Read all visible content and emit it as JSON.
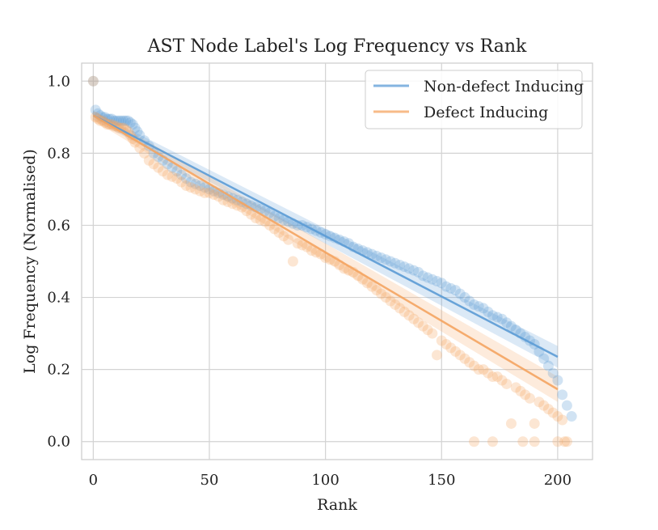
{
  "chart_data": {
    "type": "scatter",
    "title": "AST Node Label's Log Frequency vs Rank",
    "xlabel": "Rank",
    "ylabel": "Log Frequency (Normalised)",
    "xlim": [
      -5,
      215
    ],
    "ylim": [
      -0.05,
      1.05
    ],
    "xticks": [
      0,
      50,
      100,
      150,
      200
    ],
    "yticks": [
      0.0,
      0.2,
      0.4,
      0.6,
      0.8,
      1.0
    ],
    "grid": true,
    "legend_position": "top-right",
    "series": [
      {
        "name": "Non-defect Inducing",
        "color": "#5b9bd5",
        "regression": {
          "x_start": 0,
          "y_start": 0.905,
          "x_end": 200,
          "y_end": 0.235,
          "ci_band": 0.03
        },
        "x": [
          0,
          1,
          2,
          3,
          4,
          5,
          6,
          7,
          8,
          9,
          10,
          11,
          12,
          13,
          14,
          15,
          16,
          17,
          18,
          19,
          20,
          22,
          24,
          26,
          28,
          30,
          32,
          34,
          36,
          38,
          40,
          42,
          44,
          46,
          48,
          50,
          52,
          54,
          56,
          58,
          60,
          62,
          64,
          66,
          68,
          70,
          72,
          74,
          76,
          78,
          80,
          82,
          84,
          86,
          88,
          90,
          92,
          94,
          96,
          98,
          100,
          102,
          104,
          106,
          108,
          110,
          112,
          114,
          116,
          118,
          120,
          122,
          124,
          126,
          128,
          130,
          132,
          134,
          136,
          138,
          140,
          142,
          144,
          146,
          148,
          150,
          152,
          154,
          156,
          158,
          160,
          162,
          164,
          166,
          168,
          170,
          172,
          174,
          176,
          178,
          180,
          182,
          184,
          186,
          188,
          190,
          192,
          194,
          196,
          198,
          200,
          202,
          204,
          206
        ],
        "y": [
          1.0,
          0.92,
          0.91,
          0.905,
          0.9,
          0.9,
          0.895,
          0.895,
          0.895,
          0.89,
          0.89,
          0.89,
          0.89,
          0.89,
          0.89,
          0.89,
          0.885,
          0.88,
          0.87,
          0.86,
          0.85,
          0.835,
          0.82,
          0.8,
          0.79,
          0.78,
          0.77,
          0.76,
          0.75,
          0.74,
          0.73,
          0.72,
          0.715,
          0.71,
          0.705,
          0.7,
          0.695,
          0.69,
          0.685,
          0.68,
          0.675,
          0.67,
          0.665,
          0.66,
          0.655,
          0.65,
          0.645,
          0.64,
          0.635,
          0.625,
          0.62,
          0.615,
          0.61,
          0.605,
          0.6,
          0.6,
          0.595,
          0.59,
          0.585,
          0.58,
          0.575,
          0.57,
          0.565,
          0.56,
          0.555,
          0.55,
          0.54,
          0.535,
          0.53,
          0.525,
          0.52,
          0.515,
          0.51,
          0.505,
          0.5,
          0.495,
          0.49,
          0.485,
          0.48,
          0.475,
          0.47,
          0.46,
          0.455,
          0.45,
          0.445,
          0.44,
          0.43,
          0.425,
          0.42,
          0.41,
          0.4,
          0.39,
          0.38,
          0.375,
          0.37,
          0.36,
          0.35,
          0.345,
          0.34,
          0.33,
          0.32,
          0.31,
          0.3,
          0.29,
          0.28,
          0.27,
          0.25,
          0.23,
          0.21,
          0.19,
          0.17,
          0.13,
          0.1,
          0.07
        ]
      },
      {
        "name": "Defect Inducing",
        "color": "#f4a460",
        "regression": {
          "x_start": 0,
          "y_start": 0.905,
          "x_end": 200,
          "y_end": 0.145,
          "ci_band": 0.035
        },
        "x": [
          0,
          1,
          2,
          3,
          4,
          5,
          6,
          7,
          8,
          9,
          10,
          11,
          12,
          13,
          14,
          15,
          16,
          17,
          18,
          20,
          22,
          24,
          26,
          28,
          30,
          32,
          34,
          36,
          38,
          40,
          42,
          44,
          46,
          48,
          50,
          52,
          54,
          56,
          58,
          60,
          62,
          64,
          66,
          68,
          70,
          72,
          74,
          76,
          78,
          80,
          82,
          84,
          86,
          88,
          90,
          92,
          94,
          96,
          98,
          100,
          102,
          104,
          106,
          108,
          110,
          112,
          114,
          116,
          118,
          120,
          122,
          124,
          126,
          128,
          130,
          132,
          134,
          136,
          138,
          140,
          142,
          144,
          146,
          148,
          150,
          152,
          154,
          156,
          158,
          160,
          162,
          164,
          166,
          168,
          170,
          172,
          174,
          176,
          178,
          180,
          182,
          184,
          186,
          188,
          190,
          192,
          194,
          196,
          198,
          200,
          202,
          203,
          204,
          164,
          172,
          185,
          190,
          200
        ],
        "y": [
          1.0,
          0.9,
          0.895,
          0.89,
          0.89,
          0.885,
          0.88,
          0.88,
          0.88,
          0.875,
          0.875,
          0.87,
          0.87,
          0.87,
          0.865,
          0.86,
          0.85,
          0.84,
          0.83,
          0.815,
          0.8,
          0.78,
          0.77,
          0.76,
          0.75,
          0.74,
          0.735,
          0.73,
          0.72,
          0.71,
          0.705,
          0.7,
          0.695,
          0.69,
          0.69,
          0.685,
          0.68,
          0.67,
          0.665,
          0.66,
          0.655,
          0.65,
          0.64,
          0.63,
          0.62,
          0.615,
          0.61,
          0.6,
          0.59,
          0.58,
          0.57,
          0.56,
          0.5,
          0.55,
          0.545,
          0.54,
          0.53,
          0.525,
          0.52,
          0.51,
          0.505,
          0.5,
          0.49,
          0.48,
          0.475,
          0.47,
          0.46,
          0.45,
          0.44,
          0.43,
          0.42,
          0.41,
          0.4,
          0.39,
          0.38,
          0.37,
          0.36,
          0.35,
          0.34,
          0.33,
          0.32,
          0.31,
          0.3,
          0.24,
          0.28,
          0.27,
          0.26,
          0.25,
          0.24,
          0.23,
          0.22,
          0.21,
          0.2,
          0.2,
          0.19,
          0.18,
          0.18,
          0.17,
          0.16,
          0.05,
          0.15,
          0.14,
          0.13,
          0.12,
          0.05,
          0.11,
          0.1,
          0.09,
          0.08,
          0.07,
          0.06,
          0.0,
          0.0,
          0.0,
          0.0,
          0.0,
          0.0,
          0.0
        ]
      }
    ]
  }
}
